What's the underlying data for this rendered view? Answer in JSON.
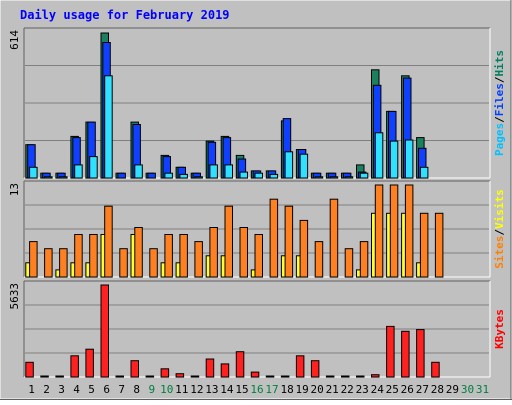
{
  "chart_data": {
    "type": "bar",
    "title": "Daily usage for February 2019",
    "categories": [
      "1",
      "2",
      "3",
      "4",
      "5",
      "6",
      "7",
      "8",
      "9",
      "10",
      "11",
      "12",
      "13",
      "14",
      "15",
      "16",
      "17",
      "18",
      "19",
      "20",
      "21",
      "22",
      "23",
      "24",
      "25",
      "26",
      "27",
      "28",
      "29",
      "30",
      "31"
    ],
    "weekend_days": [
      "9",
      "10",
      "16",
      "17",
      "30",
      "31"
    ],
    "panels": [
      {
        "id": "hits",
        "max_label": "614",
        "ylim": [
          0,
          614
        ],
        "grid": true,
        "axis_labels": [
          {
            "text": "Pages",
            "color": "#00c0ff"
          },
          {
            "text": "Files",
            "color": "#0040ff"
          },
          {
            "text": "Hits",
            "color": "#008060"
          }
        ],
        "series": [
          {
            "name": "Hits",
            "color": "#1a8060",
            "values": [
              140,
              20,
              20,
              175,
              235,
              610,
              20,
              235,
              20,
              95,
              45,
              20,
              155,
              175,
              95,
              30,
              30,
              240,
              120,
              20,
              20,
              20,
              55,
              455,
              280,
              430,
              170,
              0,
              0,
              0,
              0
            ]
          },
          {
            "name": "Files",
            "color": "#1040ff",
            "values": [
              140,
              20,
              20,
              170,
              235,
              570,
              20,
              225,
              20,
              90,
              45,
              20,
              150,
              170,
              80,
              30,
              30,
              250,
              120,
              20,
              20,
              20,
              25,
              390,
              280,
              420,
              125,
              0,
              0,
              0,
              0
            ]
          },
          {
            "name": "Pages",
            "color": "#30e0ff",
            "values": [
              45,
              5,
              5,
              55,
              90,
              430,
              0,
              55,
              0,
              20,
              15,
              5,
              55,
              55,
              25,
              20,
              15,
              110,
              100,
              5,
              5,
              5,
              20,
              190,
              155,
              160,
              45,
              0,
              0,
              0,
              0
            ]
          }
        ]
      },
      {
        "id": "visits",
        "max_label": "13",
        "ylim": [
          0,
          13
        ],
        "grid": true,
        "axis_labels": [
          {
            "text": "Sites",
            "color": "#ff8000"
          },
          {
            "text": "Visits",
            "color": "#ffff00"
          }
        ],
        "series": [
          {
            "name": "Visits",
            "color": "#ffff30",
            "values": [
              2,
              0,
              1,
              2,
              2,
              6,
              0,
              6,
              0,
              2,
              2,
              0,
              3,
              3,
              0,
              1,
              0,
              3,
              3,
              0,
              0,
              0,
              1,
              9,
              9,
              9,
              2,
              0,
              0,
              0,
              0
            ]
          },
          {
            "name": "Sites",
            "color": "#ff8020",
            "values": [
              5,
              4,
              4,
              6,
              6,
              10,
              4,
              7,
              4,
              6,
              6,
              5,
              7,
              10,
              7,
              6,
              11,
              10,
              8,
              5,
              11,
              4,
              5,
              13,
              13,
              13,
              9,
              9,
              0,
              0,
              0
            ]
          }
        ]
      },
      {
        "id": "kbytes",
        "max_label": "5633",
        "ylim": [
          0,
          5633
        ],
        "grid": true,
        "axis_labels": [
          {
            "text": "KBytes",
            "color": "#ff0000"
          }
        ],
        "series": [
          {
            "name": "KBytes",
            "color": "#ff2020",
            "values": [
              900,
              40,
              40,
              1300,
              1700,
              5633,
              40,
              1000,
              40,
              500,
              200,
              40,
              1100,
              800,
              1550,
              300,
              40,
              40,
              1300,
              1000,
              40,
              40,
              40,
              140,
              3100,
              2800,
              2900,
              900,
              0,
              0,
              0
            ]
          }
        ]
      }
    ]
  },
  "colors": {
    "background": "#c0c0c0",
    "title": "#0000ff",
    "weekday_label": "#000000",
    "weekend_label": "#008040",
    "grid": "#808080"
  }
}
